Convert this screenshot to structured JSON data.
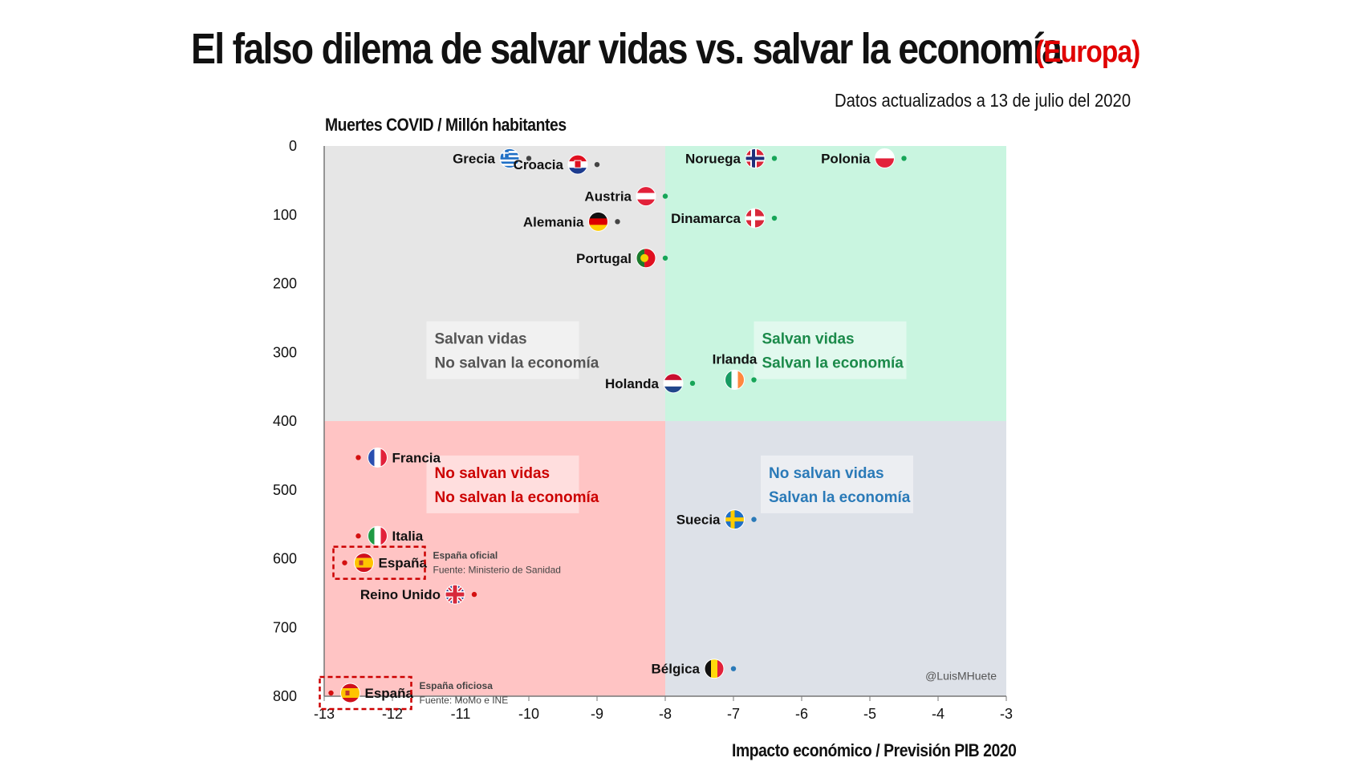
{
  "header": {
    "title": "El falso dilema de salvar vidas vs. salvar la economía",
    "region": "(Europa)",
    "update_note": "Datos actualizados a 13 de julio del 2020"
  },
  "colors": {
    "grey_quadrant": "#e6e6e6",
    "green_quadrant": "#c9f5e0",
    "red_quadrant": "#ffc4c4",
    "blue_quadrant": "#dde1e8",
    "grey_text": "#555555",
    "green_text": "#1b8a4a",
    "red_text": "#cc0000",
    "blue_text": "#2a7ab8"
  },
  "chart_data": {
    "type": "scatter",
    "xlabel": "Impacto económico / Previsión PIB 2020",
    "ylabel": "Muertes COVID / Millón habitantes",
    "xlim": [
      -13,
      -3
    ],
    "ylim": [
      0,
      800
    ],
    "y_inverted": true,
    "x_ticks": [
      "-13",
      "-12",
      "-11",
      "-10",
      "-9",
      "-8",
      "-7",
      "-6",
      "-5",
      "-4",
      "-3"
    ],
    "y_ticks": [
      "0",
      "100",
      "200",
      "300",
      "400",
      "500",
      "600",
      "700",
      "800"
    ],
    "quadrant_split": {
      "x": -8,
      "y": 400
    },
    "quadrants": [
      {
        "id": "top-left",
        "line1": "Salvan vidas",
        "line2": "No salvan la economía",
        "color": "grey"
      },
      {
        "id": "top-right",
        "line1": "Salvan vidas",
        "line2": "Salvan la economía",
        "color": "green"
      },
      {
        "id": "bottom-left",
        "line1": "No salvan vidas",
        "line2": "No salvan la economía",
        "color": "red"
      },
      {
        "id": "bottom-right",
        "line1": "No salvan vidas",
        "line2": "Salvan la economía",
        "color": "blue"
      }
    ],
    "points": [
      {
        "country": "Grecia",
        "x": -10.0,
        "y": 18,
        "flag": "greece",
        "side": "left"
      },
      {
        "country": "Croacia",
        "x": -9.0,
        "y": 27,
        "flag": "croatia",
        "side": "left"
      },
      {
        "country": "Noruega",
        "x": -6.4,
        "y": 18,
        "flag": "norway",
        "side": "left"
      },
      {
        "country": "Polonia",
        "x": -4.5,
        "y": 18,
        "flag": "poland",
        "side": "left"
      },
      {
        "country": "Austria",
        "x": -8.0,
        "y": 73,
        "flag": "austria",
        "side": "left"
      },
      {
        "country": "Alemania",
        "x": -8.7,
        "y": 110,
        "flag": "germany",
        "side": "left"
      },
      {
        "country": "Dinamarca",
        "x": -6.4,
        "y": 105,
        "flag": "denmark",
        "side": "left"
      },
      {
        "country": "Portugal",
        "x": -8.0,
        "y": 163,
        "flag": "portugal",
        "side": "left"
      },
      {
        "country": "Holanda",
        "x": -7.6,
        "y": 345,
        "flag": "netherlands",
        "side": "left"
      },
      {
        "country": "Irlanda",
        "x": -6.7,
        "y": 340,
        "flag": "ireland",
        "side": "top"
      },
      {
        "country": "Francia",
        "x": -12.5,
        "y": 453,
        "flag": "france",
        "side": "right"
      },
      {
        "country": "Italia",
        "x": -12.5,
        "y": 567,
        "flag": "italy",
        "side": "right"
      },
      {
        "country": "España",
        "x": -12.7,
        "y": 606,
        "flag": "spain",
        "side": "right"
      },
      {
        "country": "Reino Unido",
        "x": -10.8,
        "y": 652,
        "flag": "uk",
        "side": "left"
      },
      {
        "country": "Suecia",
        "x": -6.7,
        "y": 543,
        "flag": "sweden",
        "side": "left"
      },
      {
        "country": "Bélgica",
        "x": -7.0,
        "y": 760,
        "flag": "belgium",
        "side": "left"
      },
      {
        "country": "España",
        "x": -12.9,
        "y": 800,
        "flag": "spain",
        "side": "right"
      }
    ],
    "annotations": [
      {
        "line1": "España oficial",
        "line2": "Fuente: Ministerio de Sanidad"
      },
      {
        "line1": "España oficiosa",
        "line2": "Fuente: MoMo e INE"
      }
    ],
    "credit": "@LuisMHuete"
  }
}
